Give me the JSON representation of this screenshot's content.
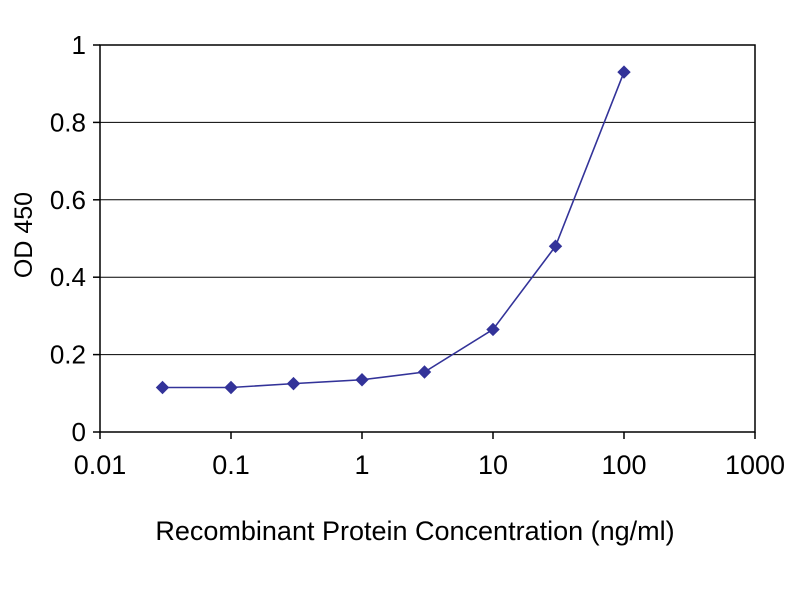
{
  "chart_data": {
    "type": "line",
    "title": "",
    "xlabel": "Recombinant Protein Concentration (ng/ml)",
    "ylabel": "OD 450",
    "x_scale": "log",
    "xlim": [
      0.01,
      1000
    ],
    "ylim": [
      0,
      1
    ],
    "x_ticks": [
      0.01,
      0.1,
      1,
      10,
      100,
      1000
    ],
    "x_tick_labels": [
      "0.01",
      "0.1",
      "1",
      "10",
      "100",
      "1000"
    ],
    "y_ticks": [
      0,
      0.2,
      0.4,
      0.6,
      0.8,
      1
    ],
    "y_tick_labels": [
      "0",
      "0.2",
      "0.4",
      "0.6",
      "0.8",
      "1"
    ],
    "grid": "horizontal",
    "legend": "none",
    "colors": {
      "series": "#333399",
      "axis": "#000000",
      "gridline": "#000000",
      "background": "#ffffff"
    },
    "series": [
      {
        "name": "OD 450",
        "marker": "diamond",
        "color": "#333399",
        "x": [
          0.03,
          0.1,
          0.3,
          1,
          3,
          10,
          30,
          100
        ],
        "y": [
          0.115,
          0.115,
          0.125,
          0.135,
          0.155,
          0.265,
          0.48,
          0.93
        ]
      }
    ]
  }
}
